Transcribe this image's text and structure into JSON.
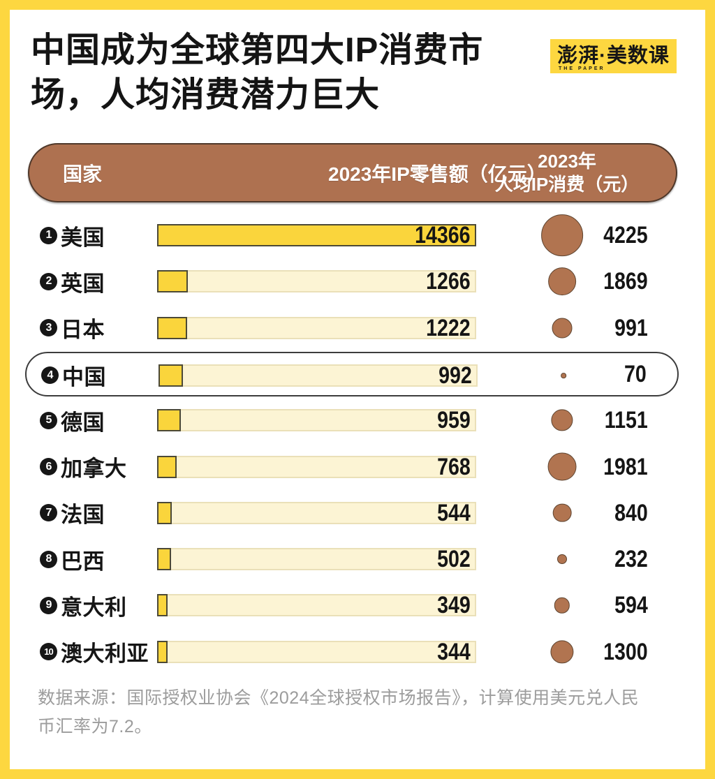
{
  "title": {
    "full": "中国成为全球第四大IP消费市场，人均消费潜力巨大",
    "lines": [
      "中国成为全球第四大IP消费市",
      "场，人均消费潜力巨大"
    ]
  },
  "logo": {
    "text": "澎湃·美数课",
    "subtext": "THE PAPER"
  },
  "table": {
    "columns": {
      "country": "国家",
      "retail": "2023年IP零售额（亿元）",
      "per_capita_line1": "2023年",
      "per_capita_line2": "人均IP消费（元）"
    },
    "max_retail": 14366,
    "rows": [
      {
        "rank": "1",
        "country": "美国",
        "retail": 14366,
        "per_capita": 4225,
        "highlight": false
      },
      {
        "rank": "2",
        "country": "英国",
        "retail": 1266,
        "per_capita": 1869,
        "highlight": false
      },
      {
        "rank": "3",
        "country": "日本",
        "retail": 1222,
        "per_capita": 991,
        "highlight": false
      },
      {
        "rank": "4",
        "country": "中国",
        "retail": 992,
        "per_capita": 70,
        "highlight": true
      },
      {
        "rank": "5",
        "country": "德国",
        "retail": 959,
        "per_capita": 1151,
        "highlight": false
      },
      {
        "rank": "6",
        "country": "加拿大",
        "retail": 768,
        "per_capita": 1981,
        "highlight": false
      },
      {
        "rank": "7",
        "country": "法国",
        "retail": 544,
        "per_capita": 840,
        "highlight": false
      },
      {
        "rank": "8",
        "country": "巴西",
        "retail": 502,
        "per_capita": 232,
        "highlight": false
      },
      {
        "rank": "9",
        "country": "意大利",
        "retail": 349,
        "per_capita": 594,
        "highlight": false
      },
      {
        "rank": "10",
        "country": "澳大利亚",
        "retail": 344,
        "per_capita": 1300,
        "highlight": false
      }
    ]
  },
  "footer": {
    "source": "数据来源：国际授权业协会《2024全球授权市场报告》，计算使用美元兑人民币汇率为7.2。"
  },
  "colors": {
    "frame_yellow": "#FDD740",
    "bar_yellow": "#FAD53C",
    "bar_border": "#4c4936",
    "track_bg": "#FCF4D4",
    "track_border": "#EAE0B8",
    "brown": "#AE7150",
    "ink": "#151515",
    "muted": "#9C9C9C"
  },
  "chart_data": {
    "type": "bar",
    "orientation": "horizontal",
    "title": "中国成为全球第四大IP消费市场，人均消费潜力巨大",
    "categories": [
      "美国",
      "英国",
      "日本",
      "中国",
      "德国",
      "加拿大",
      "法国",
      "巴西",
      "意大利",
      "澳大利亚"
    ],
    "series": [
      {
        "name": "2023年IP零售额（亿元）",
        "type": "bar",
        "values": [
          14366,
          1266,
          1222,
          992,
          959,
          768,
          544,
          502,
          349,
          344
        ]
      },
      {
        "name": "2023年人均IP消费（元）",
        "type": "bubble",
        "values": [
          4225,
          1869,
          991,
          70,
          1151,
          1981,
          840,
          232,
          594,
          1300
        ]
      }
    ],
    "xlim": [
      0,
      14366
    ],
    "grid": false,
    "legend_position": "header-row",
    "highlight_category": "中国",
    "source": "数据来源：国际授权业协会《2024全球授权市场报告》，计算使用美元兑人民币汇率为7.2。"
  }
}
